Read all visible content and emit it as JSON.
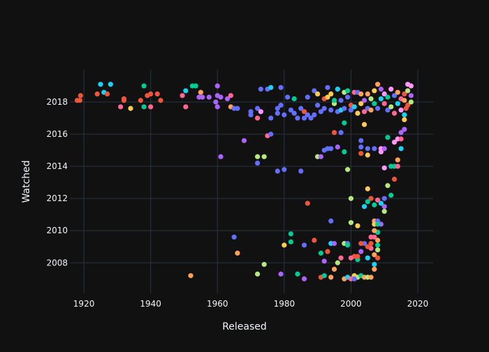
{
  "chart_data": {
    "type": "scatter",
    "title": "",
    "xlabel": "Released",
    "ylabel": "Watched",
    "xlim": [
      1915.8,
      2024.6
    ],
    "ylim": [
      2006.1,
      2020.0
    ],
    "xticks": [
      1920,
      1940,
      1960,
      1980,
      2000,
      2020
    ],
    "yticks": [
      2008,
      2010,
      2012,
      2014,
      2016,
      2018
    ],
    "grid": true,
    "legend": "none",
    "palette": [
      "#636efa",
      "#EF553B",
      "#00cc96",
      "#ab63fa",
      "#FFA15A",
      "#19d3f3",
      "#FF6692",
      "#B6E880",
      "#FF97FF",
      "#FECB52"
    ],
    "background": "#111111",
    "gridcolor": "#283442",
    "points": [
      [
        1918,
        2018.1,
        1
      ],
      [
        1918.8,
        2018.1,
        1
      ],
      [
        1919,
        2018.4,
        1
      ],
      [
        1924,
        2018.5,
        1
      ],
      [
        1925,
        2019.1,
        5
      ],
      [
        1926,
        2018.6,
        5
      ],
      [
        1927,
        2018.5,
        1
      ],
      [
        1928,
        2019.1,
        5
      ],
      [
        1931,
        2017.7,
        6
      ],
      [
        1932,
        2018.1,
        1
      ],
      [
        1932,
        2018.2,
        1
      ],
      [
        1934,
        2017.6,
        9
      ],
      [
        1937,
        2018.1,
        1
      ],
      [
        1938,
        2017.7,
        2
      ],
      [
        1938,
        2019.0,
        2
      ],
      [
        1939,
        2018.4,
        1
      ],
      [
        1940,
        2018.5,
        1
      ],
      [
        1940,
        2017.7,
        6
      ],
      [
        1942,
        2018.5,
        1
      ],
      [
        1943,
        2018.1,
        1
      ],
      [
        1949.5,
        2018.4,
        6
      ],
      [
        1950.5,
        2017.7,
        6
      ],
      [
        1950.5,
        2018.7,
        5
      ],
      [
        1952.5,
        2019.0,
        2
      ],
      [
        1953.5,
        2019.0,
        2
      ],
      [
        1955,
        2018.6,
        4
      ],
      [
        1954.5,
        2018.3,
        3
      ],
      [
        1955.5,
        2018.3,
        3
      ],
      [
        1957.5,
        2018.3,
        3
      ],
      [
        1960,
        2019.0,
        3
      ],
      [
        1960,
        2018.4,
        3
      ],
      [
        1961,
        2018.3,
        3
      ],
      [
        1959.5,
        2018.0,
        3
      ],
      [
        1960,
        2017.7,
        3
      ],
      [
        1963,
        2018.2,
        3
      ],
      [
        1964,
        2018.4,
        6
      ],
      [
        1964,
        2017.7,
        4
      ],
      [
        1965,
        2017.6,
        0
      ],
      [
        1966,
        2017.6,
        0
      ],
      [
        1970,
        2017.4,
        0
      ],
      [
        1970,
        2017.2,
        0
      ],
      [
        1972,
        2017.6,
        0
      ],
      [
        1972,
        2017.0,
        6
      ],
      [
        1973,
        2017.4,
        8
      ],
      [
        1973,
        2018.8,
        0
      ],
      [
        1975,
        2018.8,
        0
      ],
      [
        1976,
        2018.9,
        5
      ],
      [
        1976,
        2017.0,
        0
      ],
      [
        1978,
        2017.3,
        0
      ],
      [
        1978,
        2017.6,
        0
      ],
      [
        1979,
        2018.9,
        0
      ],
      [
        1979,
        2017.8,
        0
      ],
      [
        1980,
        2017.2,
        0
      ],
      [
        1981,
        2018.3,
        0
      ],
      [
        1982,
        2017.5,
        0
      ],
      [
        1983,
        2017.3,
        0
      ],
      [
        1983,
        2018.2,
        2
      ],
      [
        1984,
        2017.0,
        0
      ],
      [
        1985,
        2017.6,
        0
      ],
      [
        1986,
        2017.4,
        1
      ],
      [
        1986,
        2017.0,
        0
      ],
      [
        1987,
        2017.2,
        0
      ],
      [
        1987,
        2018.3,
        0
      ],
      [
        1988,
        2017.0,
        0
      ],
      [
        1989,
        2017.2,
        0
      ],
      [
        1989,
        2018.7,
        0
      ],
      [
        1990,
        2017.8,
        0
      ],
      [
        1990,
        2018.5,
        9
      ],
      [
        1991,
        2017.4,
        0
      ],
      [
        1992,
        2017.6,
        0
      ],
      [
        1992,
        2018.2,
        1
      ],
      [
        1993,
        2018.9,
        0
      ],
      [
        1993,
        2018.3,
        9
      ],
      [
        1994,
        2017.5,
        0
      ],
      [
        1994,
        2018.5,
        9
      ],
      [
        1995,
        2017.9,
        7
      ],
      [
        1995,
        2018.1,
        2
      ],
      [
        1996,
        2017.4,
        0
      ],
      [
        1996,
        2018.8,
        5
      ],
      [
        1997,
        2018.1,
        0
      ],
      [
        1997,
        2017.5,
        5
      ],
      [
        1998,
        2018.6,
        7
      ],
      [
        1998,
        2017.6,
        0
      ],
      [
        1999,
        2018.3,
        0
      ],
      [
        1999,
        2018.7,
        2
      ],
      [
        2000,
        2017.8,
        1
      ],
      [
        2000,
        2017.5,
        0
      ],
      [
        2001,
        2018.6,
        6
      ],
      [
        2001,
        2017.7,
        5
      ],
      [
        2002,
        2018.6,
        0
      ],
      [
        2002,
        2017.3,
        9
      ],
      [
        2003,
        2018.5,
        4
      ],
      [
        2003,
        2017.9,
        9
      ],
      [
        2004,
        2018.1,
        3
      ],
      [
        2004,
        2017.4,
        6
      ],
      [
        2005,
        2017.6,
        0
      ],
      [
        2005,
        2018.5,
        4
      ],
      [
        2006,
        2018.2,
        7
      ],
      [
        2006,
        2017.5,
        4
      ],
      [
        2007,
        2018.7,
        9
      ],
      [
        2007,
        2017.9,
        2
      ],
      [
        2008,
        2019.1,
        4
      ],
      [
        2008,
        2017.6,
        0
      ],
      [
        2009,
        2018.8,
        3
      ],
      [
        2009,
        2018.2,
        5
      ],
      [
        2010,
        2017.9,
        6
      ],
      [
        2010,
        2018.5,
        8
      ],
      [
        2011,
        2017.5,
        0
      ],
      [
        2011,
        2018.3,
        2
      ],
      [
        2012,
        2018.8,
        8
      ],
      [
        2012,
        2017.7,
        7
      ],
      [
        2013,
        2018.4,
        0
      ],
      [
        2013,
        2017.3,
        6
      ],
      [
        2014,
        2017.9,
        5
      ],
      [
        2014,
        2018.6,
        4
      ],
      [
        2015,
        2018.2,
        6
      ],
      [
        2015,
        2017.5,
        8
      ],
      [
        2016,
        2018.1,
        4
      ],
      [
        2016,
        2018.5,
        1
      ],
      [
        2017,
        2019.1,
        8
      ],
      [
        2017,
        2018.7,
        7
      ],
      [
        2017,
        2017.8,
        1
      ],
      [
        2018,
        2019.0,
        8
      ],
      [
        2018,
        2018.4,
        3
      ],
      [
        2018,
        2018.0,
        7
      ],
      [
        2016.5,
        2017.6,
        1
      ],
      [
        2016,
        2017.2,
        5
      ],
      [
        2004,
        2016.6,
        9
      ],
      [
        2003,
        2015.6,
        0
      ],
      [
        2003,
        2015.2,
        0
      ],
      [
        2003,
        2014.8,
        1
      ],
      [
        2005,
        2015.1,
        0
      ],
      [
        2005,
        2014.7,
        9
      ],
      [
        2007,
        2015.1,
        0
      ],
      [
        2009,
        2015.1,
        8
      ],
      [
        2009,
        2014.9,
        8
      ],
      [
        2010,
        2015.1,
        3
      ],
      [
        2010,
        2013.9,
        8
      ],
      [
        2011,
        2015.8,
        2
      ],
      [
        2012,
        2014.0,
        2
      ],
      [
        2013,
        2014.0,
        2
      ],
      [
        2013,
        2015.5,
        8
      ],
      [
        2014,
        2015.7,
        8
      ],
      [
        2014,
        2014.4,
        4
      ],
      [
        2015,
        2016.1,
        3
      ],
      [
        2015,
        2015.7,
        6
      ],
      [
        2015,
        2015.1,
        5
      ],
      [
        2016,
        2016.3,
        3
      ],
      [
        2016,
        2016.9,
        9
      ],
      [
        2014,
        2014.0,
        6
      ],
      [
        2013,
        2013.2,
        1
      ],
      [
        2012,
        2012.2,
        2
      ],
      [
        2011,
        2012.8,
        7
      ],
      [
        2010,
        2012.0,
        0
      ],
      [
        2010,
        2011.5,
        3
      ],
      [
        2010,
        2011.2,
        7
      ],
      [
        2009,
        2011.7,
        5
      ],
      [
        2008,
        2011.9,
        6
      ],
      [
        2007,
        2011.6,
        2
      ],
      [
        2006,
        2012.0,
        1
      ],
      [
        2005,
        2012.6,
        9
      ],
      [
        2004,
        2011.5,
        5
      ],
      [
        2005,
        2011.8,
        2
      ],
      [
        2000,
        2012.0,
        7
      ],
      [
        2002,
        2010.3,
        9
      ],
      [
        2000,
        2010.5,
        7
      ],
      [
        2007,
        2010.6,
        4
      ],
      [
        2007,
        2010.4,
        9
      ],
      [
        2008,
        2010.6,
        0
      ],
      [
        2009,
        2010.4,
        3
      ],
      [
        2008,
        2009.9,
        9
      ],
      [
        2008,
        2009.4,
        4
      ],
      [
        2007,
        2009.6,
        6
      ],
      [
        2008,
        2009.1,
        2
      ],
      [
        2008,
        2008.8,
        7
      ],
      [
        2007,
        2008.5,
        4
      ],
      [
        2008,
        2008.3,
        1
      ],
      [
        2007,
        2007.9,
        5
      ],
      [
        2007,
        2007.6,
        4
      ],
      [
        2008,
        2009.9,
        2
      ],
      [
        2006,
        2009.2,
        1
      ],
      [
        2006,
        2008.9,
        6
      ],
      [
        2005,
        2008.3,
        5
      ],
      [
        2005,
        2009.0,
        1
      ],
      [
        2004,
        2009.2,
        0
      ],
      [
        2003,
        2009.2,
        1
      ],
      [
        2002,
        2008.2,
        2
      ],
      [
        2002,
        2008.4,
        1
      ],
      [
        2001,
        2008.4,
        1
      ],
      [
        2000,
        2008.3,
        6
      ],
      [
        2003,
        2008.7,
        3
      ],
      [
        2006,
        2009.6,
        6
      ],
      [
        2007,
        2010.0,
        4
      ],
      [
        2008,
        2010.4,
        2
      ],
      [
        1989,
        2009.4,
        1
      ],
      [
        1991,
        2008.6,
        2
      ],
      [
        1993,
        2008.7,
        1
      ],
      [
        1994,
        2009.2,
        5
      ],
      [
        1995,
        2009.2,
        3
      ],
      [
        1992,
        2008.1,
        3
      ],
      [
        1991,
        2007.1,
        1
      ],
      [
        1992,
        2007.2,
        2
      ],
      [
        1994,
        2007.1,
        4
      ],
      [
        1995,
        2007.6,
        4
      ],
      [
        1996,
        2008.0,
        7
      ],
      [
        1997,
        2008.3,
        6
      ],
      [
        1998,
        2009.2,
        7
      ],
      [
        1999,
        2009.2,
        0
      ],
      [
        1999,
        2009.1,
        2
      ],
      [
        1998,
        2007.0,
        4
      ],
      [
        1999,
        2007.1,
        5
      ],
      [
        2000,
        2007.0,
        6
      ],
      [
        2001,
        2007.2,
        9
      ],
      [
        2002,
        2007.1,
        7
      ],
      [
        2003,
        2007.2,
        2
      ],
      [
        2004,
        2007.1,
        4
      ],
      [
        2005,
        2007.1,
        7
      ],
      [
        2006,
        2007.1,
        4
      ],
      [
        2001,
        2007.0,
        0
      ],
      [
        1994,
        2010.6,
        0
      ],
      [
        1990,
        2014.6,
        7
      ],
      [
        1991,
        2014.6,
        3
      ],
      [
        1992,
        2015.0,
        0
      ],
      [
        1993,
        2015.1,
        0
      ],
      [
        1994,
        2015.1,
        0
      ],
      [
        1996,
        2015.2,
        3
      ],
      [
        1998,
        2014.9,
        2
      ],
      [
        1999,
        2013.8,
        7
      ],
      [
        1997,
        2016.1,
        0
      ],
      [
        1995,
        2016.1,
        1
      ],
      [
        1998,
        2016.7,
        2
      ],
      [
        1952,
        2007.2,
        4
      ],
      [
        1966,
        2008.6,
        4
      ],
      [
        1965,
        2009.6,
        0
      ],
      [
        1972,
        2014.6,
        7
      ],
      [
        1974,
        2014.6,
        7
      ],
      [
        1972,
        2014.2,
        0
      ],
      [
        1961,
        2014.6,
        3
      ],
      [
        1968,
        2015.6,
        3
      ],
      [
        1975,
        2015.9,
        6
      ],
      [
        1978,
        2013.7,
        0
      ],
      [
        1980,
        2013.8,
        0
      ],
      [
        1985,
        2013.7,
        0
      ],
      [
        1976,
        2016.0,
        0
      ],
      [
        1974,
        2007.9,
        7
      ],
      [
        1972,
        2007.3,
        7
      ],
      [
        1980,
        2009.1,
        9
      ],
      [
        1982,
        2009.3,
        2
      ],
      [
        1982,
        2009.8,
        2
      ],
      [
        1979,
        2007.3,
        3
      ],
      [
        1984,
        2007.3,
        2
      ],
      [
        1986,
        2007.0,
        3
      ],
      [
        1987,
        2011.7,
        1
      ],
      [
        1986,
        2009.1,
        0
      ]
    ]
  }
}
